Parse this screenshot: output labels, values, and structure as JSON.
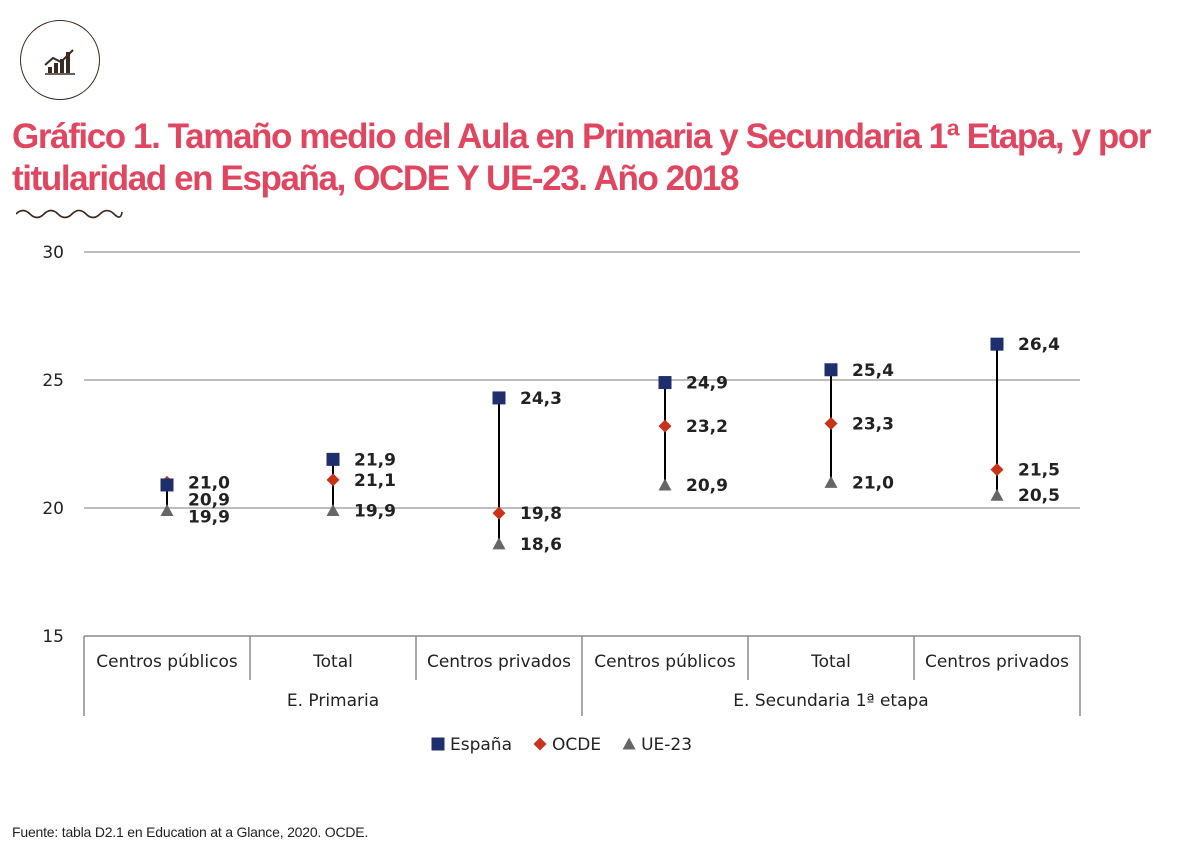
{
  "page": {
    "title": "Gráfico 1. Tamaño medio del Aula en Primaria y Secundaria  1ª Etapa, y por titularidad en España, OCDE Y UE-23. Año 2018",
    "source": "Fuente: tabla D2.1 en Education at a Glance, 2020. OCDE.",
    "logo_icon": "bar-chart-trend-icon"
  },
  "colors": {
    "title": "#e04660",
    "espana": "#1f2f6e",
    "ocde": "#c8331a",
    "ue23": "#666666",
    "connector": "#000000",
    "grid": "#bdbdbd"
  },
  "chart_data": {
    "type": "scatter",
    "ylim": [
      15,
      30
    ],
    "yticks": [
      15,
      20,
      25,
      30
    ],
    "grid": true,
    "legend_position": "bottom",
    "categories": [
      "Centros públicos",
      "Total",
      "Centros privados",
      "Centros públicos",
      "Total",
      "Centros privados"
    ],
    "groups": [
      {
        "label": "E. Primaria",
        "span": 3
      },
      {
        "label": "E. Secundaria 1ª etapa",
        "span": 3
      }
    ],
    "series": [
      {
        "name": "España",
        "marker": "square",
        "values": [
          20.9,
          21.9,
          24.3,
          24.9,
          25.4,
          26.4
        ],
        "labels": [
          "20,9",
          "21,9",
          "24,3",
          "24,9",
          "25,4",
          "26,4"
        ]
      },
      {
        "name": "OCDE",
        "marker": "diamond",
        "values": [
          21.0,
          21.1,
          19.8,
          23.2,
          23.3,
          21.5
        ],
        "labels": [
          "21,0",
          "21,1",
          "19,8",
          "23,2",
          "23,3",
          "21,5"
        ]
      },
      {
        "name": "UE-23",
        "marker": "triangle",
        "values": [
          19.9,
          19.9,
          18.6,
          20.9,
          21.0,
          20.5
        ],
        "labels": [
          "19,9",
          "19,9",
          "18,6",
          "20,9",
          "21,0",
          "20,5"
        ]
      }
    ]
  }
}
